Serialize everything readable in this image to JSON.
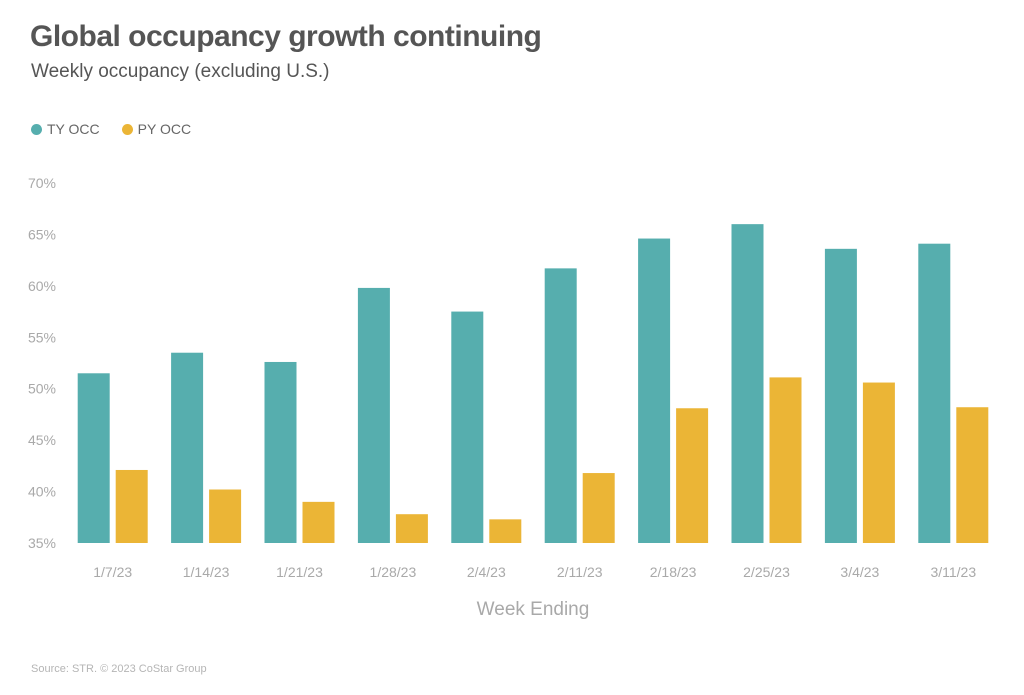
{
  "title": "Global occupancy growth continuing",
  "subtitle": "Weekly occupancy (excluding U.S.)",
  "source": "Source: STR. © 2023 CoStar Group",
  "colors": {
    "ty": "#56aeae",
    "py": "#ebb536",
    "axis_text": "#a9a9a9"
  },
  "chart_data": {
    "type": "bar",
    "title": "Global occupancy growth continuing",
    "subtitle": "Weekly occupancy (excluding U.S.)",
    "xlabel": "Week Ending",
    "ylabel": "",
    "ylim": [
      35,
      70
    ],
    "yticks": [
      35,
      40,
      45,
      50,
      55,
      60,
      65,
      70
    ],
    "ytick_labels": [
      "35%",
      "40%",
      "45%",
      "50%",
      "55%",
      "60%",
      "65%",
      "70%"
    ],
    "grid": false,
    "legend_position": "top-left",
    "categories": [
      "1/7/23",
      "1/14/23",
      "1/21/23",
      "1/28/23",
      "2/4/23",
      "2/11/23",
      "2/18/23",
      "2/25/23",
      "3/4/23",
      "3/11/23"
    ],
    "series": [
      {
        "name": "TY OCC",
        "values": [
          51.5,
          53.5,
          52.6,
          59.8,
          57.5,
          61.7,
          64.6,
          66.0,
          63.6,
          64.1
        ]
      },
      {
        "name": "PY OCC",
        "values": [
          42.1,
          40.2,
          39.0,
          37.8,
          37.3,
          41.8,
          48.1,
          51.1,
          50.6,
          48.2
        ]
      }
    ]
  }
}
